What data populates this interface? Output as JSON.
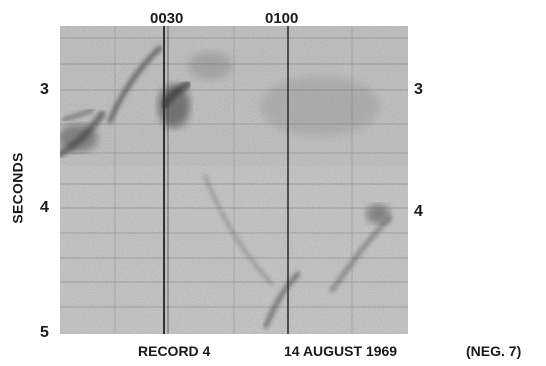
{
  "time_labels": [
    "0030",
    "0100"
  ],
  "left_ticks": [
    "3",
    "4",
    "5"
  ],
  "right_ticks": [
    "3",
    "4"
  ],
  "y_axis_title": "SECONDS",
  "caption": {
    "record": "RECORD 4",
    "date": "14 AUGUST 1969",
    "negative": "(NEG. 7)"
  },
  "colors": {
    "paper": "#cfcfcf",
    "trace": "#2a2a2a",
    "text": "#1a1a1a"
  }
}
